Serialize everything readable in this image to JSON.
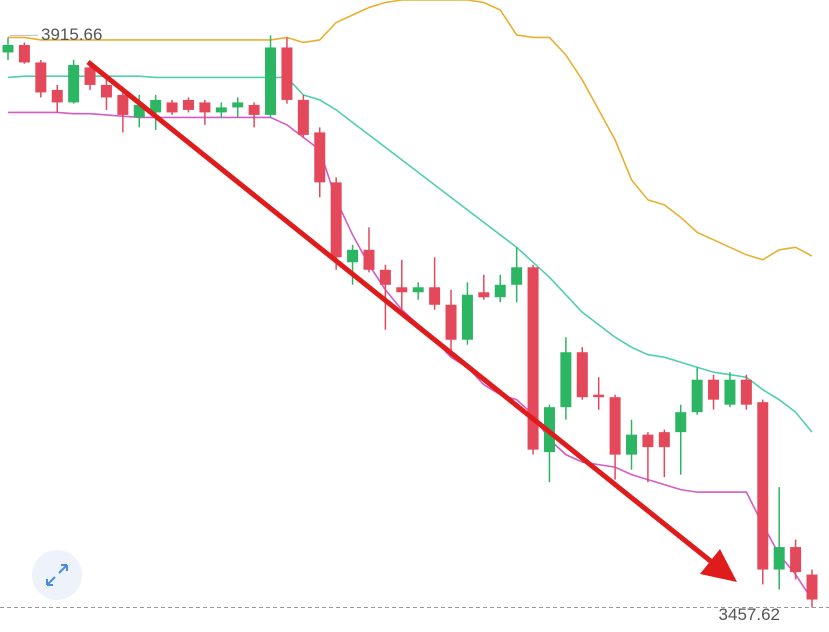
{
  "chart_data": {
    "type": "candlestick",
    "ylim": [
      3438,
      3944
    ],
    "up_color": "#2cb664",
    "down_color": "#e4485b",
    "open": [
      3902,
      3908,
      3894,
      3872,
      3862,
      3890,
      3876,
      3868,
      3850,
      3854,
      3862,
      3864,
      3862,
      3854,
      3858,
      3860,
      3852,
      3906,
      3864,
      3838,
      3798,
      3734,
      3744,
      3728,
      3714,
      3710,
      3714,
      3700,
      3672,
      3710,
      3706,
      3716,
      3730,
      3582,
      3618,
      3662,
      3628,
      3626,
      3580,
      3596,
      3598,
      3598,
      3614,
      3640,
      3620,
      3640,
      3622,
      3488,
      3506,
      3484
    ],
    "high": [
      3914,
      3910,
      3896,
      3876,
      3896,
      3894,
      3882,
      3872,
      3868,
      3868,
      3864,
      3866,
      3864,
      3862,
      3866,
      3862,
      3915.66,
      3914,
      3868,
      3842,
      3802,
      3748,
      3762,
      3732,
      3736,
      3718,
      3738,
      3712,
      3718,
      3724,
      3724,
      3746,
      3732,
      3620,
      3674,
      3666,
      3642,
      3628,
      3608,
      3598,
      3600,
      3620,
      3650,
      3644,
      3646,
      3644,
      3624,
      3554,
      3512,
      3488
    ],
    "low": [
      3896,
      3893,
      3866,
      3854,
      3861,
      3872,
      3856,
      3838,
      3842,
      3840,
      3852,
      3854,
      3844,
      3850,
      3850,
      3842,
      3850,
      3861,
      3834,
      3786,
      3728,
      3716,
      3726,
      3680,
      3696,
      3704,
      3696,
      3662,
      3668,
      3704,
      3702,
      3702,
      3580,
      3558,
      3608,
      3624,
      3616,
      3560,
      3568,
      3558,
      3562,
      3564,
      3612,
      3616,
      3618,
      3616,
      3476,
      3472,
      3480,
      3457.62
    ],
    "close": [
      3908,
      3894,
      3870,
      3862,
      3892,
      3876,
      3866,
      3852,
      3860,
      3864,
      3854,
      3856,
      3854,
      3858,
      3862,
      3852,
      3906,
      3864,
      3836,
      3798,
      3738,
      3744,
      3728,
      3716,
      3710,
      3714,
      3700,
      3672,
      3708,
      3706,
      3716,
      3730,
      3584,
      3618,
      3662,
      3626,
      3626,
      3580,
      3596,
      3586,
      3586,
      3614,
      3640,
      3624,
      3640,
      3620,
      3488,
      3506,
      3486,
      3464
    ],
    "bands": [
      {
        "color": "#e8b030",
        "values": [
          3914,
          3914,
          3912,
          3912,
          3912,
          3912,
          3912,
          3912,
          3912,
          3912,
          3912,
          3912,
          3912,
          3912,
          3912,
          3912,
          3912,
          3914,
          3910,
          3912,
          3926,
          3932,
          3938,
          3942,
          3944,
          3944,
          3944,
          3944,
          3944,
          3942,
          3936,
          3916,
          3914,
          3914,
          3900,
          3880,
          3856,
          3832,
          3800,
          3784,
          3780,
          3770,
          3758,
          3752,
          3746,
          3740,
          3736,
          3744,
          3746,
          3739
        ]
      },
      {
        "color": "#4fcfae",
        "values": [
          3882,
          3883,
          3883,
          3883,
          3883,
          3883,
          3883,
          3883,
          3883,
          3882,
          3882,
          3882,
          3882,
          3882,
          3882,
          3882,
          3882,
          3882,
          3868,
          3864,
          3856,
          3846,
          3836,
          3826,
          3816,
          3806,
          3796,
          3786,
          3776,
          3766,
          3756,
          3746,
          3734,
          3722,
          3708,
          3694,
          3684,
          3674,
          3666,
          3660,
          3658,
          3654,
          3650,
          3646,
          3644,
          3642,
          3632,
          3624,
          3614,
          3598
        ]
      },
      {
        "color": "#d45cc4",
        "values": [
          3854,
          3854,
          3854,
          3854,
          3853,
          3853,
          3852,
          3851,
          3850,
          3850,
          3850,
          3850,
          3850,
          3850,
          3850,
          3850,
          3850,
          3844,
          3834,
          3824,
          3784,
          3756,
          3732,
          3712,
          3696,
          3684,
          3672,
          3658,
          3650,
          3636,
          3628,
          3624,
          3612,
          3592,
          3580,
          3574,
          3572,
          3570,
          3564,
          3560,
          3556,
          3552,
          3550,
          3550,
          3550,
          3550,
          3524,
          3500,
          3484,
          3464
        ]
      }
    ],
    "max_label": {
      "value": 3915.66,
      "label": "3915.66"
    },
    "min_label": {
      "value": 3457.62,
      "label": "3457.62"
    }
  }
}
